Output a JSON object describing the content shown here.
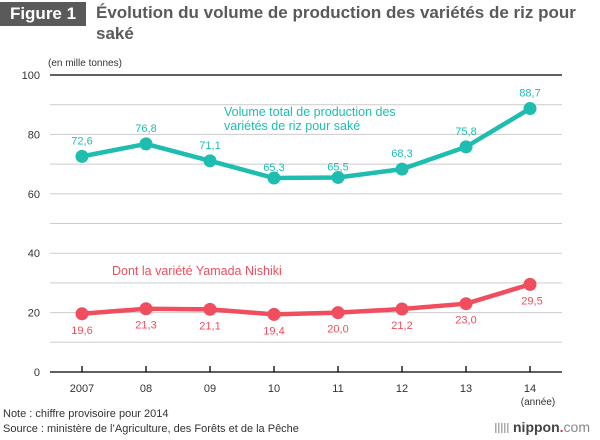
{
  "header": {
    "badge": "Figure 1",
    "title": "Évolution du volume de production des variétés de riz pour saké"
  },
  "unit_label": "(en mille tonnes)",
  "notes": {
    "note": "Note : chiffre provisoire pour 2014",
    "source": "Source : ministère de l’Agriculture, des Forêts et de la Pêche"
  },
  "logo": {
    "name": "nippon",
    "dot": ".",
    "suffix": "com"
  },
  "colors": {
    "total": "#1ebdaf",
    "yamada": "#f04e5e",
    "grid": "#cccccc",
    "axis": "#000000"
  },
  "chart_data": {
    "type": "line",
    "title": "Évolution du volume de production des variétés de riz pour saké",
    "xlabel": "(année)",
    "ylabel": "(en mille tonnes)",
    "categories": [
      "2007",
      "08",
      "09",
      "10",
      "11",
      "12",
      "13",
      "14"
    ],
    "ylim": [
      0,
      100
    ],
    "yticks": [
      0,
      20,
      40,
      60,
      80,
      100
    ],
    "grid": true,
    "series": [
      {
        "name": "Volume total de production des variétés de riz pour saké",
        "name_lines": [
          "Volume total de production des",
          "variétés de riz pour saké"
        ],
        "values": [
          72.6,
          76.8,
          71.1,
          65.3,
          65.5,
          68.3,
          75.8,
          88.7
        ],
        "labels": [
          "72,6",
          "76,8",
          "71,1",
          "65,3",
          "65,5",
          "68,3",
          "75,8",
          "88,7"
        ],
        "label_position": "above"
      },
      {
        "name": "Dont la variété Yamada Nishiki",
        "name_lines": [
          "Dont la variété Yamada Nishiki"
        ],
        "values": [
          19.6,
          21.3,
          21.1,
          19.4,
          20.0,
          21.2,
          23.0,
          29.5
        ],
        "labels": [
          "19,6",
          "21,3",
          "21,1",
          "19,4",
          "20,0",
          "21,2",
          "23,0",
          "29,5"
        ],
        "label_position": "below"
      }
    ]
  }
}
